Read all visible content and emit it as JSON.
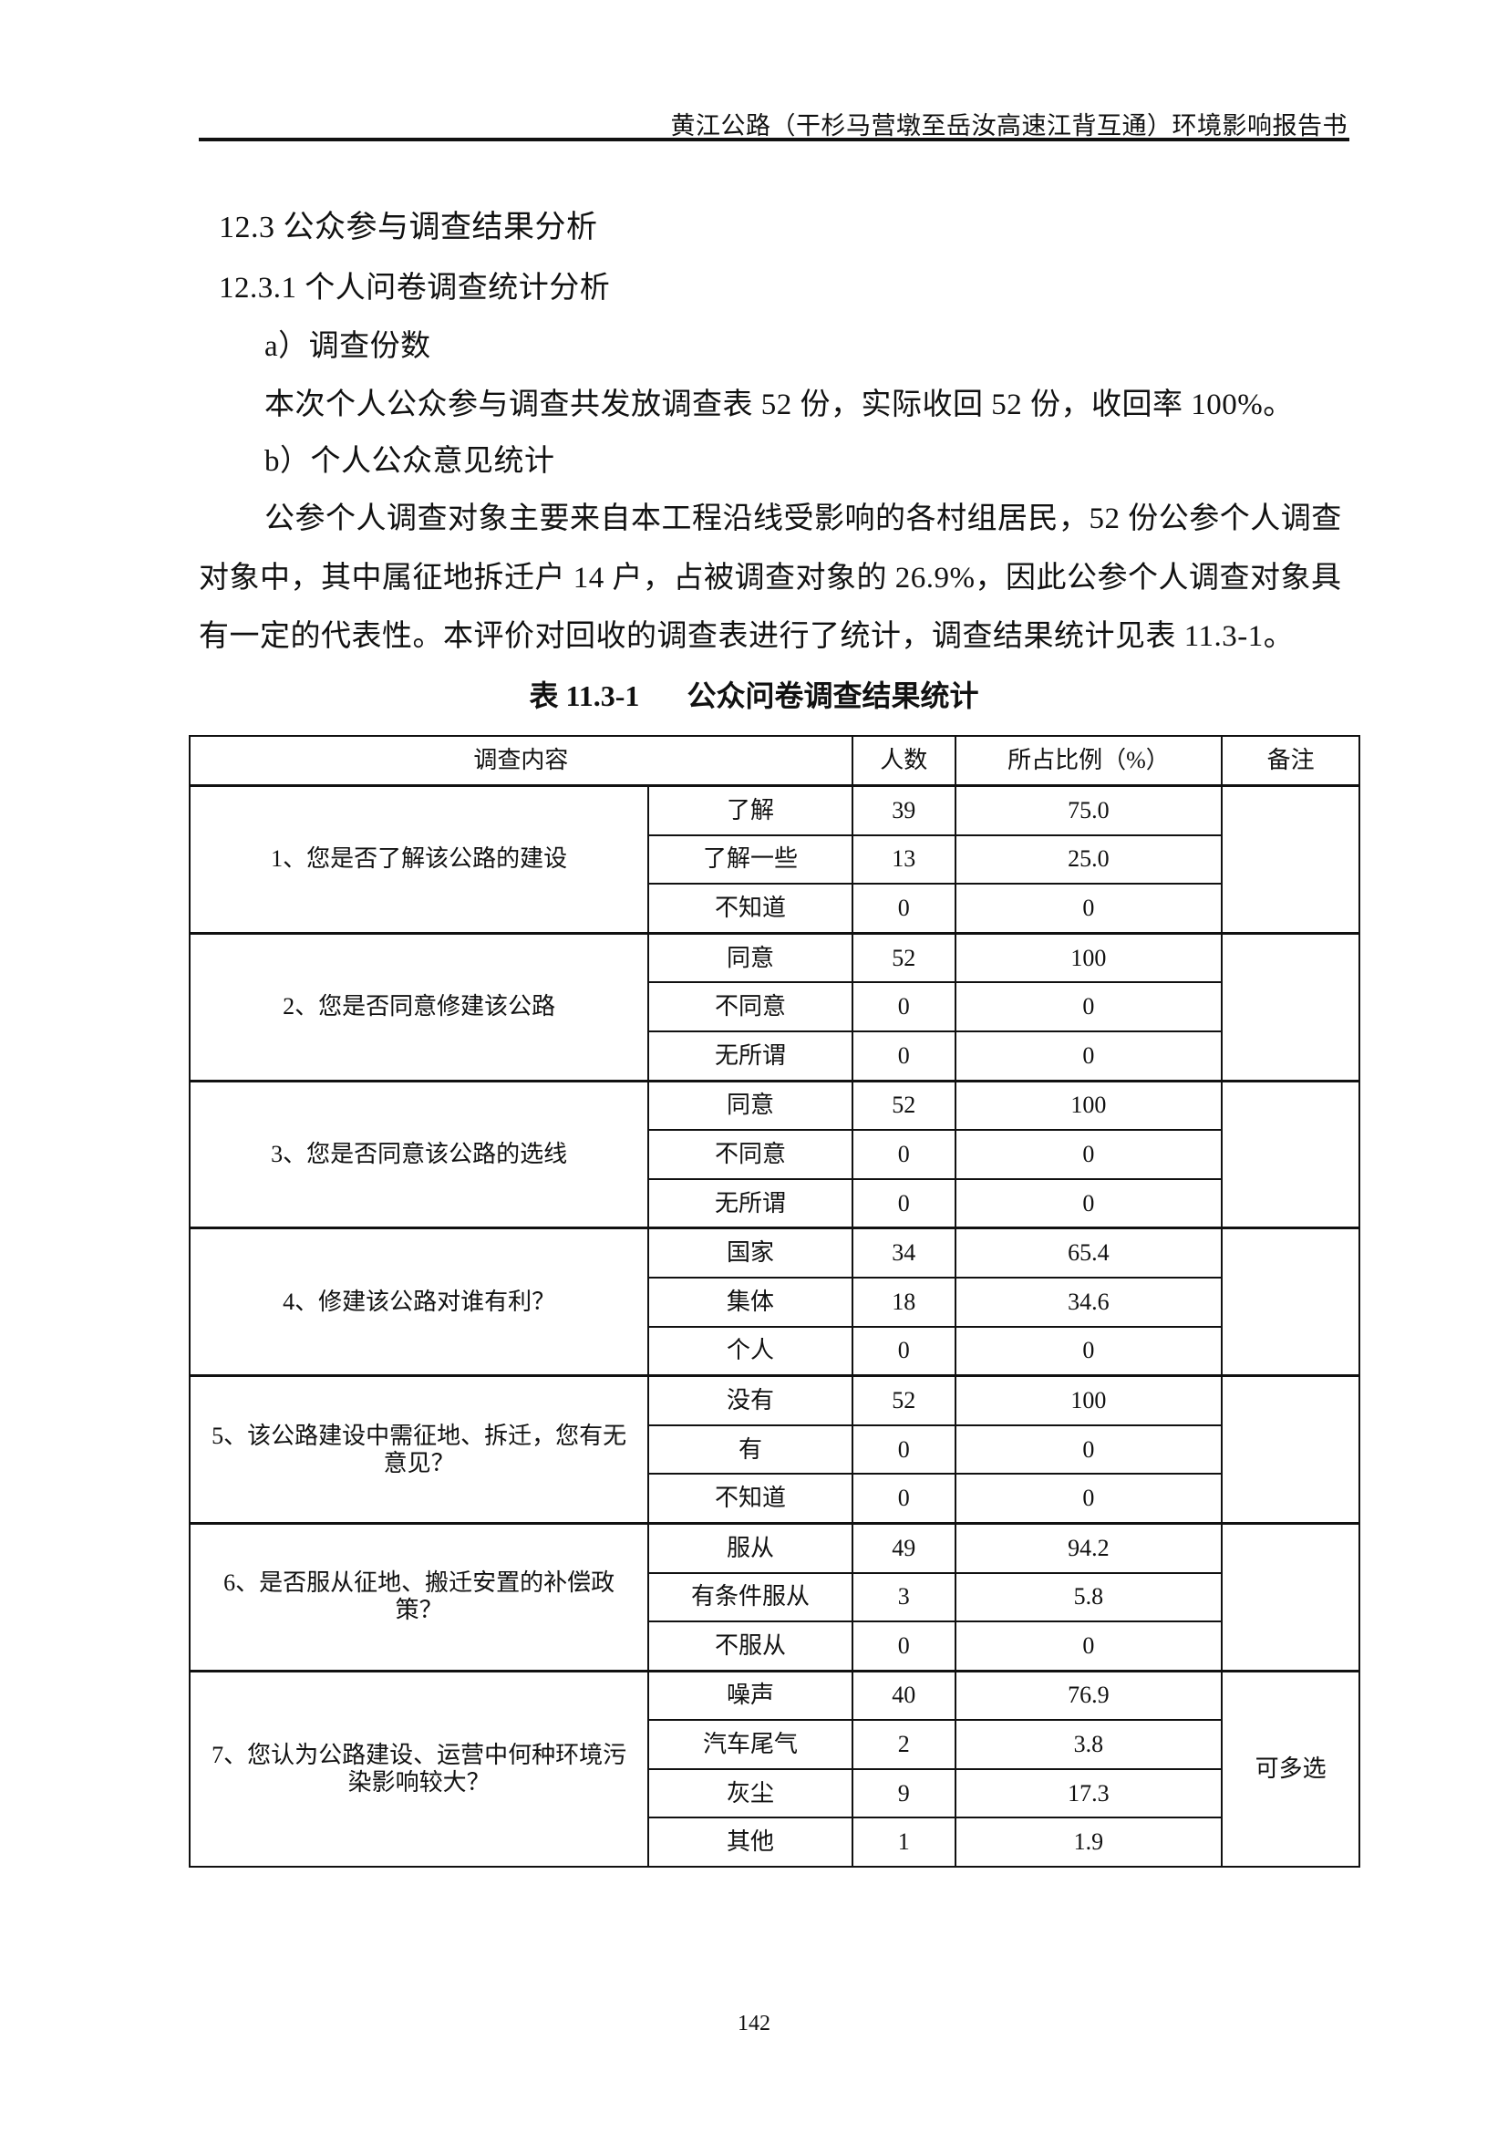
{
  "header": {
    "title": "黄江公路（干杉马营墩至岳汝高速江背互通）环境影响报告书"
  },
  "section": {
    "heading": "12.3  公众参与调查结果分析",
    "subheading": "12.3.1 个人问卷调查统计分析",
    "item_a": "a）调查份数",
    "item_a_text": "本次个人公众参与调查共发放调查表 52 份，实际收回 52 份，收回率 100%。",
    "item_b": "b）个人公众意见统计",
    "paragraph_lines": [
      "公参个人调查对象主要来自本工程沿线受影响的各村组居民，52 份公参个人调查",
      "对象中，其中属征地拆迁户 14 户，占被调查对象的 26.9%，因此公参个人调查对象具",
      "有一定的代表性。本评价对回收的调查表进行了统计，调查结果统计见表 11.3-1。"
    ]
  },
  "table": {
    "caption_number": "表 11.3-1",
    "caption_title": "公众问卷调查结果统计",
    "headers": [
      "调查内容",
      "人数",
      "所占比例（%）",
      "备注"
    ],
    "groups": [
      {
        "question": "1、您是否了解该公路的建设",
        "note": "",
        "rows": [
          [
            "了解",
            "39",
            "75.0"
          ],
          [
            "了解一些",
            "13",
            "25.0"
          ],
          [
            "不知道",
            "0",
            "0"
          ]
        ]
      },
      {
        "question": "2、您是否同意修建该公路",
        "note": "",
        "rows": [
          [
            "同意",
            "52",
            "100"
          ],
          [
            "不同意",
            "0",
            "0"
          ],
          [
            "无所谓",
            "0",
            "0"
          ]
        ]
      },
      {
        "question": "3、您是否同意该公路的选线",
        "note": "",
        "rows": [
          [
            "同意",
            "52",
            "100"
          ],
          [
            "不同意",
            "0",
            "0"
          ],
          [
            "无所谓",
            "0",
            "0"
          ]
        ]
      },
      {
        "question": "4、修建该公路对谁有利？",
        "note": "",
        "rows": [
          [
            "国家",
            "34",
            "65.4"
          ],
          [
            "集体",
            "18",
            "34.6"
          ],
          [
            "个人",
            "0",
            "0"
          ]
        ]
      },
      {
        "question": "5、该公路建设中需征地、拆迁，您有无意见？",
        "note": "",
        "rows": [
          [
            "没有",
            "52",
            "100"
          ],
          [
            "有",
            "0",
            "0"
          ],
          [
            "不知道",
            "0",
            "0"
          ]
        ]
      },
      {
        "question": "6、是否服从征地、搬迁安置的补偿政策？",
        "note": "",
        "rows": [
          [
            "服从",
            "49",
            "94.2"
          ],
          [
            "有条件服从",
            "3",
            "5.8"
          ],
          [
            "不服从",
            "0",
            "0"
          ]
        ]
      },
      {
        "question": "7、您认为公路建设、运营中何种环境污染影响较大？",
        "note": "可多选",
        "rows": [
          [
            "噪声",
            "40",
            "76.9"
          ],
          [
            "汽车尾气",
            "2",
            "3.8"
          ],
          [
            "灰尘",
            "9",
            "17.3"
          ],
          [
            "其他",
            "1",
            "1.9"
          ]
        ]
      }
    ]
  },
  "footer": {
    "page_number": "142"
  }
}
